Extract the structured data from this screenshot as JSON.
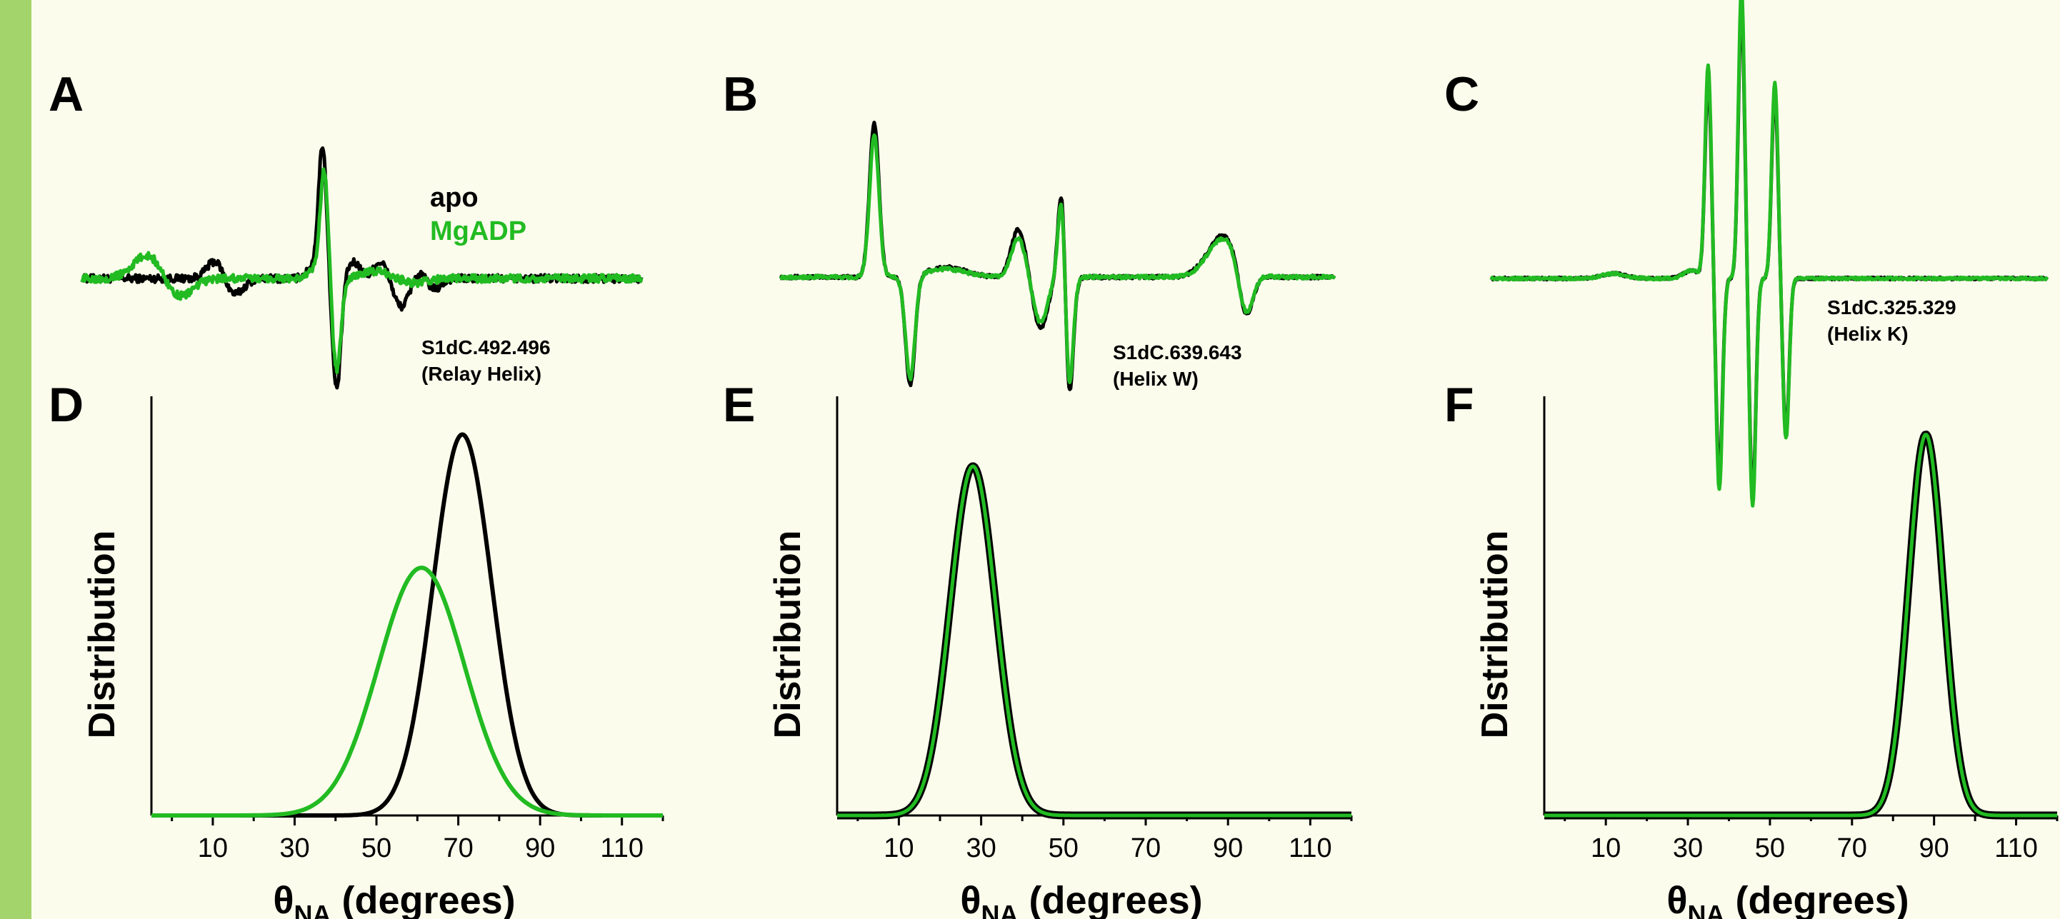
{
  "colors": {
    "apo": "#000000",
    "mgadp": "#22bb22",
    "accent_bar": "#a3d36b",
    "background": "#fbfcec"
  },
  "legend": {
    "apo": "apo",
    "mgadp": "MgADP"
  },
  "chart_data": [
    {
      "panel": "A",
      "type": "line",
      "title": "",
      "annotation": [
        "S1dC.492.496",
        "(Relay Helix)"
      ],
      "series": [
        {
          "name": "apo",
          "color": "#000000",
          "peaks": [
            [
              0.0,
              0.0,
              0.1
            ],
            [
              0.24,
              0.62,
              0.022
            ],
            [
              0.27,
              -0.55,
              0.024
            ],
            [
              0.42,
              0.47,
              0.02
            ],
            [
              0.43,
              3.8,
              0.01
            ],
            [
              0.455,
              -3.5,
              0.011
            ],
            [
              0.49,
              0.65,
              0.022
            ],
            [
              0.51,
              -0.55,
              0.022
            ],
            [
              0.53,
              0.74,
              0.025
            ],
            [
              0.57,
              -0.95,
              0.022
            ],
            [
              0.6,
              0.25,
              0.02
            ],
            [
              0.63,
              -0.35,
              0.018
            ]
          ]
        },
        {
          "name": "MgADP",
          "color": "#22bb22",
          "peaks": [
            [
              0.12,
              0.78,
              0.038
            ],
            [
              0.17,
              -0.65,
              0.035
            ],
            [
              0.42,
              0.3,
              0.018
            ],
            [
              0.433,
              3.2,
              0.01
            ],
            [
              0.455,
              -2.9,
              0.011
            ],
            [
              0.54,
              0.28,
              0.05
            ],
            [
              0.58,
              -0.25,
              0.04
            ]
          ]
        }
      ]
    },
    {
      "panel": "B",
      "type": "line",
      "title": "",
      "annotation": [
        "S1dC.639.643",
        "(Helix W)"
      ],
      "series": [
        {
          "name": "apo",
          "color": "#000000",
          "peaks": [
            [
              0.17,
              4.8,
              0.012
            ],
            [
              0.235,
              -3.4,
              0.012
            ],
            [
              0.3,
              0.3,
              0.05
            ],
            [
              0.43,
              1.5,
              0.018
            ],
            [
              0.47,
              -1.6,
              0.018
            ],
            [
              0.51,
              4.0,
              0.01
            ],
            [
              0.52,
              -4.6,
              0.011
            ],
            [
              0.8,
              1.3,
              0.04
            ],
            [
              0.84,
              -1.6,
              0.018
            ]
          ]
        },
        {
          "name": "MgADP",
          "color": "#22bb22",
          "peaks": [
            [
              0.17,
              4.4,
              0.012
            ],
            [
              0.235,
              -3.2,
              0.012
            ],
            [
              0.3,
              0.25,
              0.05
            ],
            [
              0.43,
              1.2,
              0.018
            ],
            [
              0.47,
              -1.4,
              0.018
            ],
            [
              0.51,
              3.6,
              0.01
            ],
            [
              0.52,
              -4.2,
              0.011
            ],
            [
              0.8,
              1.2,
              0.04
            ],
            [
              0.84,
              -1.5,
              0.018
            ]
          ]
        }
      ]
    },
    {
      "panel": "C",
      "type": "line",
      "title": "",
      "annotation": [
        "S1dC.325.329",
        "(Helix K)"
      ],
      "series": [
        {
          "name": "apo",
          "color": "#000000",
          "peaks": [
            [
              0.22,
              0.15,
              0.03
            ],
            [
              0.36,
              0.25,
              0.02
            ],
            [
              0.39,
              6.2,
              0.008
            ],
            [
              0.41,
              -6.2,
              0.008
            ],
            [
              0.45,
              8.5,
              0.008
            ],
            [
              0.47,
              -6.8,
              0.008
            ],
            [
              0.51,
              5.8,
              0.008
            ],
            [
              0.53,
              -4.8,
              0.008
            ]
          ]
        },
        {
          "name": "MgADP",
          "color": "#22bb22",
          "peaks": [
            [
              0.22,
              0.15,
              0.03
            ],
            [
              0.36,
              0.25,
              0.02
            ],
            [
              0.39,
              6.6,
              0.008
            ],
            [
              0.41,
              -6.6,
              0.008
            ],
            [
              0.45,
              9.0,
              0.008
            ],
            [
              0.47,
              -7.1,
              0.008
            ],
            [
              0.51,
              6.1,
              0.008
            ],
            [
              0.53,
              -5.0,
              0.008
            ]
          ]
        }
      ]
    },
    {
      "panel": "D",
      "type": "line",
      "ylabel": "Distribution",
      "xlabel_main": "θ",
      "xlabel_sub": "NA",
      "xlabel_rest": " (degrees)",
      "xlim": [
        -5,
        120
      ],
      "ylim": [
        0,
        1.1
      ],
      "xticks": [
        10,
        30,
        50,
        70,
        90,
        110
      ],
      "series": [
        {
          "name": "apo",
          "color": "#000000",
          "mean": 71,
          "sd": 7.2,
          "height": 1.0
        },
        {
          "name": "MgADP",
          "color": "#22bb22",
          "mean": 61,
          "sd": 10.5,
          "height": 0.65
        }
      ]
    },
    {
      "panel": "E",
      "type": "line",
      "ylabel": "Distribution",
      "xlabel_main": "θ",
      "xlabel_sub": "NA",
      "xlabel_rest": " (degrees)",
      "xlim": [
        -5,
        120
      ],
      "ylim": [
        0,
        1.2
      ],
      "xticks": [
        10,
        30,
        50,
        70,
        90,
        110
      ],
      "series": [
        {
          "name": "apo",
          "color": "#000000",
          "mean": 28,
          "sd": 5.5,
          "height": 1.0
        },
        {
          "name": "MgADP",
          "color": "#22bb22",
          "mean": 28,
          "sd": 5.5,
          "height": 1.0
        }
      ]
    },
    {
      "panel": "F",
      "type": "line",
      "ylabel": "Distribution",
      "xlabel_main": "θ",
      "xlabel_sub": "NA",
      "xlabel_rest": " (degrees)",
      "xlim": [
        -5,
        120
      ],
      "ylim": [
        0,
        1.1
      ],
      "xticks": [
        10,
        30,
        50,
        70,
        90,
        110
      ],
      "series": [
        {
          "name": "apo",
          "color": "#000000",
          "mean": 88,
          "sd": 4.2,
          "height": 1.0
        },
        {
          "name": "MgADP",
          "color": "#22bb22",
          "mean": 88,
          "sd": 4.2,
          "height": 1.0
        }
      ]
    }
  ]
}
